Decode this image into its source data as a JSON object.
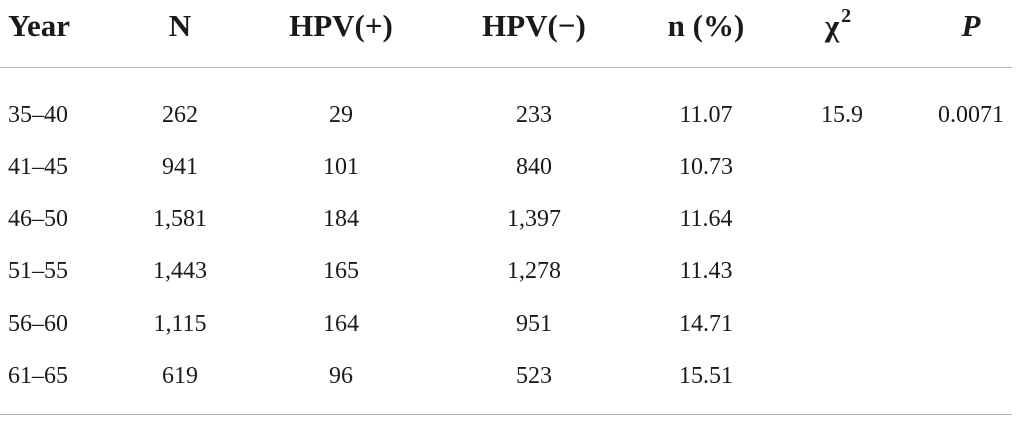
{
  "table": {
    "headers": {
      "year": "Year",
      "n": "N",
      "hpv_pos": "HPV(+)",
      "hpv_neg": "HPV(−)",
      "n_pct": "n (%)",
      "chi_symbol": "χ",
      "chi_exp": "2",
      "p": "P"
    },
    "rows": [
      {
        "year": "35–40",
        "n": "262",
        "hpv_pos": "29",
        "hpv_neg": "233",
        "n_pct": "11.07",
        "chi2": "15.9",
        "p": "0.0071"
      },
      {
        "year": "41–45",
        "n": "941",
        "hpv_pos": "101",
        "hpv_neg": "840",
        "n_pct": "10.73",
        "chi2": "",
        "p": ""
      },
      {
        "year": "46–50",
        "n": "1,581",
        "hpv_pos": "184",
        "hpv_neg": "1,397",
        "n_pct": "11.64",
        "chi2": "",
        "p": ""
      },
      {
        "year": "51–55",
        "n": "1,443",
        "hpv_pos": "165",
        "hpv_neg": "1,278",
        "n_pct": "11.43",
        "chi2": "",
        "p": ""
      },
      {
        "year": "56–60",
        "n": "1,115",
        "hpv_pos": "164",
        "hpv_neg": "951",
        "n_pct": "14.71",
        "chi2": "",
        "p": ""
      },
      {
        "year": "61–65",
        "n": "619",
        "hpv_pos": "96",
        "hpv_neg": "523",
        "n_pct": "15.51",
        "chi2": "",
        "p": ""
      }
    ]
  }
}
